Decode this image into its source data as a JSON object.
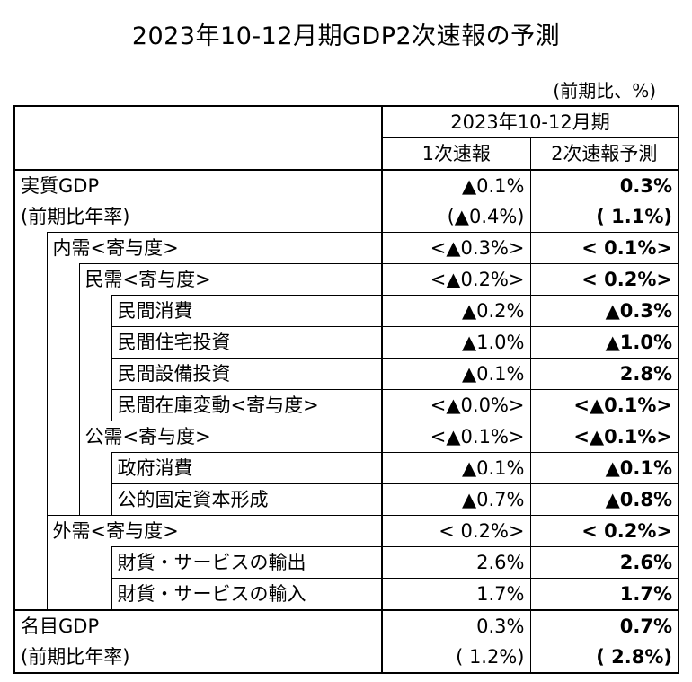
{
  "title": "2023年10-12月期GDP2次速報の予測",
  "unit": "(前期比、%)",
  "header": {
    "period": "2023年10-12月期",
    "col1": "1次速報",
    "col2": "2次速報予測"
  },
  "rows": [
    {
      "label": "実質GDP",
      "v1": "▲0.1%",
      "v2": "0.3%"
    },
    {
      "label": "(前期比年率)",
      "v1": "(▲0.4%)",
      "v2": "( 1.1%)"
    },
    {
      "label": "内需<寄与度>",
      "v1": "<▲0.3%>",
      "v2": "< 0.1%>"
    },
    {
      "label": "民需<寄与度>",
      "v1": "<▲0.2%>",
      "v2": "< 0.2%>"
    },
    {
      "label": "民間消費",
      "v1": "▲0.2%",
      "v2": "▲0.3%"
    },
    {
      "label": "民間住宅投資",
      "v1": "▲1.0%",
      "v2": "▲1.0%"
    },
    {
      "label": "民間設備投資",
      "v1": "▲0.1%",
      "v2": "2.8%"
    },
    {
      "label": "民間在庫変動<寄与度>",
      "v1": "<▲0.0%>",
      "v2": "<▲0.1%>"
    },
    {
      "label": "公需<寄与度>",
      "v1": "<▲0.1%>",
      "v2": "<▲0.1%>"
    },
    {
      "label": "政府消費",
      "v1": "▲0.1%",
      "v2": "▲0.1%"
    },
    {
      "label": "公的固定資本形成",
      "v1": "▲0.7%",
      "v2": "▲0.8%"
    },
    {
      "label": "外需<寄与度>",
      "v1": "< 0.2%>",
      "v2": "< 0.2%>"
    },
    {
      "label": "財貨・サービスの輸出",
      "v1": "2.6%",
      "v2": "2.6%"
    },
    {
      "label": "財貨・サービスの輸入",
      "v1": "1.7%",
      "v2": "1.7%"
    },
    {
      "label": "名目GDP",
      "v1": "0.3%",
      "v2": "0.7%"
    },
    {
      "label": "(前期比年率)",
      "v1": "( 1.2%)",
      "v2": "( 2.8%)"
    }
  ]
}
